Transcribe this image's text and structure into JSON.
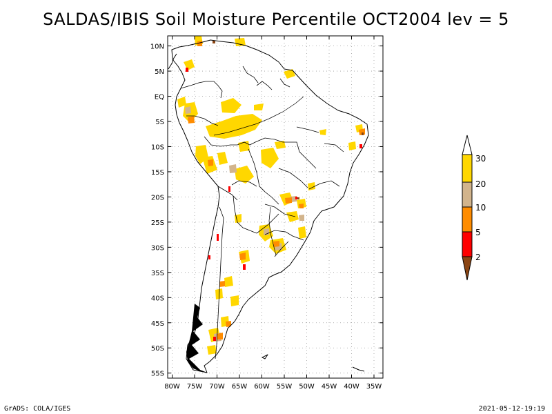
{
  "title": "SALDAS/IBIS Soil Moisture Percentile OCT2004 lev = 5",
  "map": {
    "lat_labels": [
      "10N",
      "5N",
      "EQ",
      "5S",
      "10S",
      "15S",
      "20S",
      "25S",
      "30S",
      "35S",
      "40S",
      "45S",
      "50S",
      "55S"
    ],
    "lon_labels": [
      "80W",
      "75W",
      "70W",
      "65W",
      "60W",
      "55W",
      "50W",
      "45W",
      "40W",
      "35W"
    ],
    "lat_values": [
      10,
      5,
      0,
      -5,
      -10,
      -15,
      -20,
      -25,
      -30,
      -35,
      -40,
      -45,
      -50,
      -55
    ],
    "lon_values": [
      -80,
      -75,
      -70,
      -65,
      -60,
      -55,
      -50,
      -45,
      -40,
      -35
    ],
    "extent": {
      "lon_min": -81,
      "lon_max": -33,
      "lat_min": -56,
      "lat_max": 12
    }
  },
  "legend": {
    "labels": [
      "30",
      "20",
      "10",
      "5",
      "2"
    ],
    "colors": {
      "above_30": "#ffffff",
      "20_30": "#ffd700",
      "10_20": "#d2b48c",
      "5_10": "#ff8c00",
      "2_5": "#ff0000",
      "below_2": "#8b4513"
    }
  },
  "colors": {
    "yellow": "#ffd700",
    "tan": "#d2b48c",
    "orange": "#ff8c00",
    "red": "#ff0000",
    "brown": "#8b4513",
    "coast": "#000000",
    "grid": "#9a9a9a"
  },
  "footer": {
    "left": "GrADS: COLA/IGES",
    "right": "2021-05-12-19:19"
  }
}
